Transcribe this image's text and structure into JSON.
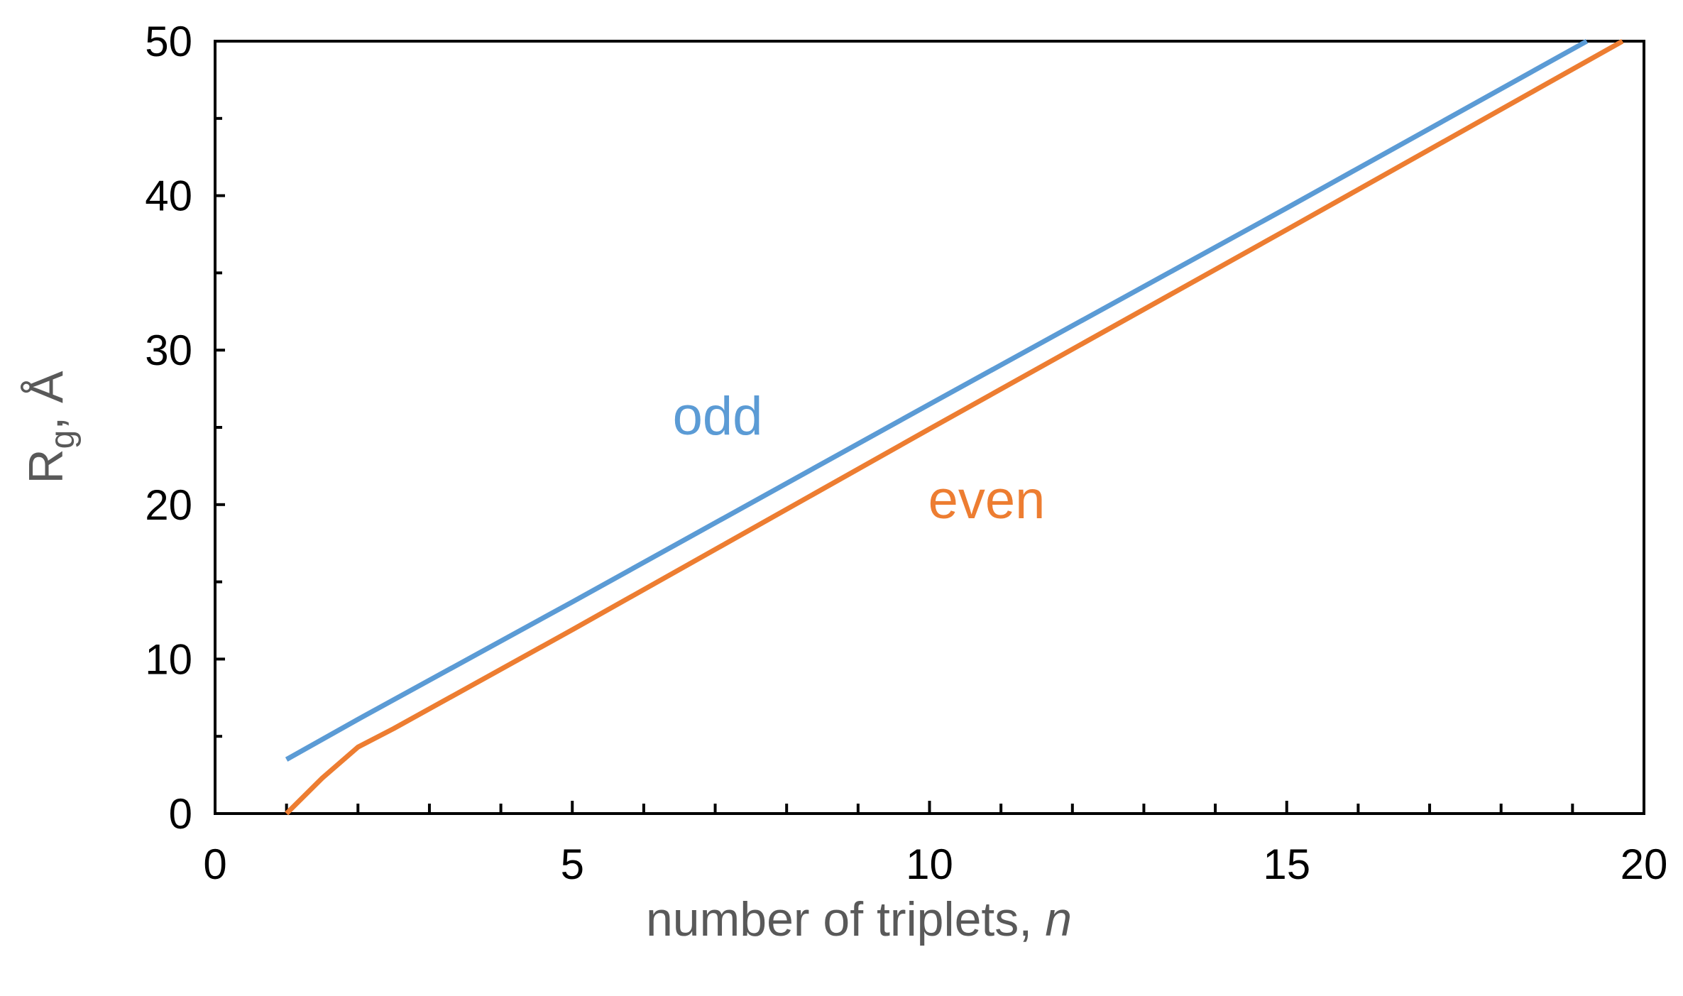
{
  "chart_data": {
    "type": "line",
    "xlabel": {
      "text": "number of triplets,",
      "italic": "n"
    },
    "ylabel": {
      "main": "R",
      "sub": "g",
      "rest": ", Å"
    },
    "xlim": [
      0,
      20
    ],
    "ylim": [
      0,
      50
    ],
    "xticks": [
      0,
      5,
      10,
      15,
      20
    ],
    "yticks": [
      0,
      10,
      20,
      30,
      40,
      50
    ],
    "xminorticks": [
      1,
      2,
      3,
      4,
      6,
      7,
      8,
      9,
      11,
      12,
      13,
      14,
      16,
      17,
      18,
      19
    ],
    "yminorticks": [
      5,
      15,
      25,
      35,
      45
    ],
    "grid": false,
    "series": [
      {
        "name": "odd",
        "color": "#5b9bd5",
        "x": [
          1,
          2,
          5,
          10,
          15,
          19.2
        ],
        "values": [
          3.5,
          6.1,
          13.7,
          26.5,
          39.2,
          50
        ]
      },
      {
        "name": "even",
        "color": "#ed7d31",
        "x": [
          1,
          1.5,
          2,
          2.5,
          5,
          10,
          15,
          19.7
        ],
        "values": [
          0,
          2.3,
          4.3,
          5.5,
          11.9,
          24.9,
          37.8,
          50
        ]
      }
    ]
  }
}
